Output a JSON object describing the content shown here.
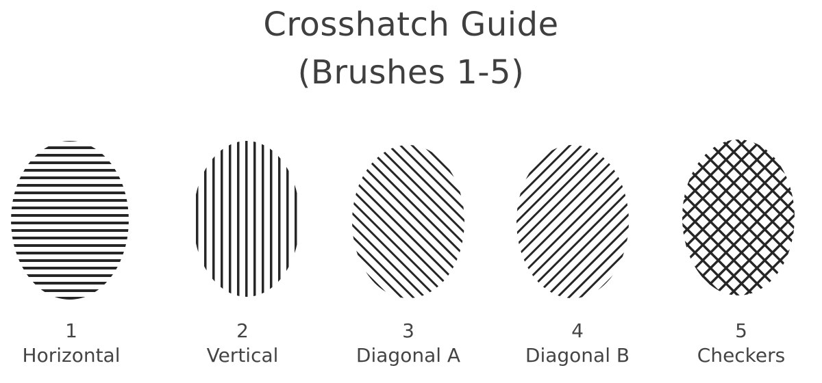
{
  "header": {
    "title_line1": "Crosshatch Guide",
    "title_line2": "(Brushes 1-5)"
  },
  "brushes": [
    {
      "number": "1",
      "label": "Horizontal",
      "pattern": "horizontal-lines"
    },
    {
      "number": "2",
      "label": "Vertical",
      "pattern": "vertical-lines"
    },
    {
      "number": "3",
      "label": "Diagonal A",
      "pattern": "diagonal-lines-down-right"
    },
    {
      "number": "4",
      "label": "Diagonal B",
      "pattern": "diagonal-lines-up-right"
    },
    {
      "number": "5",
      "label": "Checkers",
      "pattern": "diagonal-cross-hatch"
    }
  ],
  "colors": {
    "title": "#3f3f3f",
    "stroke": "#1f1f1f",
    "background": "#ffffff"
  }
}
